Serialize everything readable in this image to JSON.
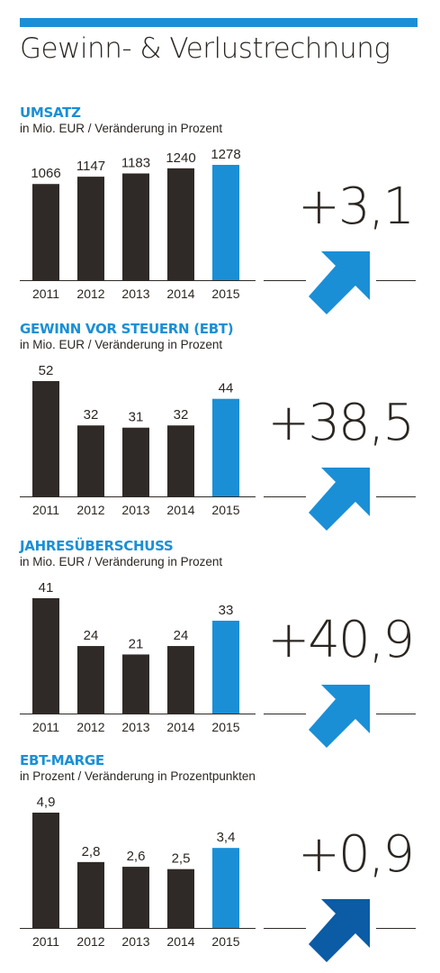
{
  "header": {
    "title": "Gewinn- & Verlustrechnung",
    "accent_color": "#1a8fd6"
  },
  "colors": {
    "bar_dark": "#2f2a27",
    "bar_highlight": "#1a8fd6",
    "arrow_default": "#1a8fd6",
    "arrow_dark": "#0b5ba5"
  },
  "chart_data": [
    {
      "type": "bar",
      "title": "UMSATZ",
      "subtitle": "in Mio. EUR / Veränderung in Prozent",
      "categories": [
        "2011",
        "2012",
        "2013",
        "2014",
        "2015"
      ],
      "values": [
        1066,
        1147,
        1183,
        1240,
        1278
      ],
      "value_labels": [
        "1066",
        "1147",
        "1183",
        "1240",
        "1278"
      ],
      "highlight_index": 4,
      "change": "+3,1",
      "arrow": "up-right"
    },
    {
      "type": "bar",
      "title": "GEWINN VOR STEUERN (EBT)",
      "subtitle": "in Mio. EUR / Veränderung in Prozent",
      "categories": [
        "2011",
        "2012",
        "2013",
        "2014",
        "2015"
      ],
      "values": [
        52,
        32,
        31,
        32,
        44
      ],
      "value_labels": [
        "52",
        "32",
        "31",
        "32",
        "44"
      ],
      "highlight_index": 4,
      "change": "+38,5",
      "arrow": "up-right"
    },
    {
      "type": "bar",
      "title": "JAHRESÜBERSCHUSS",
      "subtitle": "in Mio. EUR / Veränderung in Prozent",
      "categories": [
        "2011",
        "2012",
        "2013",
        "2014",
        "2015"
      ],
      "values": [
        41,
        24,
        21,
        24,
        33
      ],
      "value_labels": [
        "41",
        "24",
        "21",
        "24",
        "33"
      ],
      "highlight_index": 4,
      "change": "+40,9",
      "arrow": "up-right"
    },
    {
      "type": "bar",
      "title": "EBT-MARGE",
      "subtitle": "in Prozent / Veränderung in Prozentpunkten",
      "categories": [
        "2011",
        "2012",
        "2013",
        "2014",
        "2015"
      ],
      "values": [
        4.9,
        2.8,
        2.6,
        2.5,
        3.4
      ],
      "value_labels": [
        "4,9",
        "2,8",
        "2,6",
        "2,5",
        "3,4"
      ],
      "highlight_index": 4,
      "change": "+0,9",
      "arrow": "up-right",
      "arrow_color": "#0b5ba5"
    }
  ]
}
